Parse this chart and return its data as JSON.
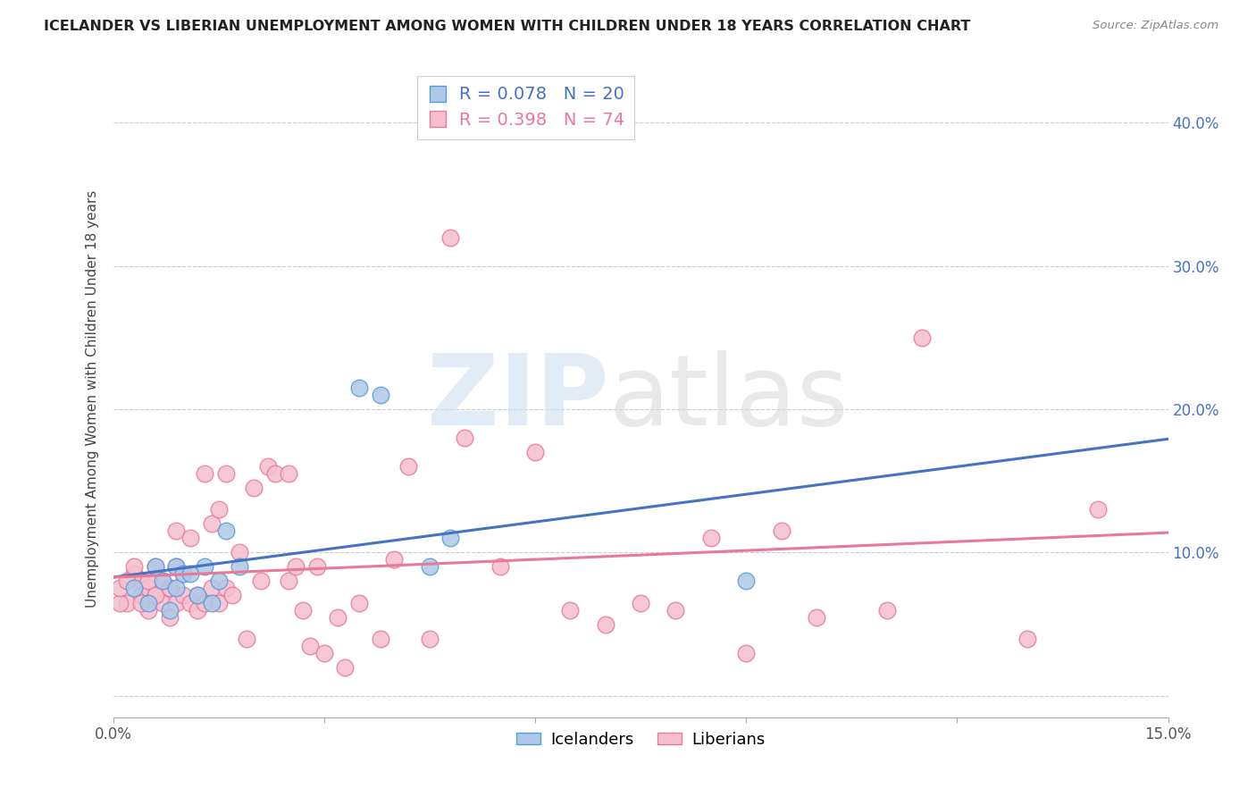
{
  "title": "ICELANDER VS LIBERIAN UNEMPLOYMENT AMONG WOMEN WITH CHILDREN UNDER 18 YEARS CORRELATION CHART",
  "source": "Source: ZipAtlas.com",
  "ylabel": "Unemployment Among Women with Children Under 18 years",
  "xlim": [
    0.0,
    0.15
  ],
  "ylim": [
    -0.015,
    0.43
  ],
  "xticks": [
    0.0,
    0.03,
    0.06,
    0.09,
    0.12,
    0.15
  ],
  "yticks": [
    0.0,
    0.1,
    0.2,
    0.3,
    0.4
  ],
  "icelander_color": "#adc8e8",
  "icelander_edge_color": "#5b9bd5",
  "liberian_color": "#f5bfce",
  "liberian_edge_color": "#e8799a",
  "icelander_line_color": "#4472c4",
  "liberian_line_color": "#e8799a",
  "icelander_x": [
    0.003,
    0.005,
    0.006,
    0.007,
    0.008,
    0.009,
    0.009,
    0.01,
    0.011,
    0.012,
    0.013,
    0.014,
    0.015,
    0.016,
    0.018,
    0.035,
    0.038,
    0.045,
    0.048,
    0.09
  ],
  "icelander_y": [
    0.075,
    0.065,
    0.09,
    0.08,
    0.06,
    0.075,
    0.09,
    0.085,
    0.085,
    0.07,
    0.09,
    0.065,
    0.08,
    0.115,
    0.09,
    0.215,
    0.21,
    0.09,
    0.11,
    0.08
  ],
  "liberian_x": [
    0.002,
    0.003,
    0.004,
    0.004,
    0.005,
    0.005,
    0.006,
    0.006,
    0.007,
    0.007,
    0.008,
    0.008,
    0.009,
    0.009,
    0.009,
    0.01,
    0.01,
    0.011,
    0.011,
    0.012,
    0.012,
    0.013,
    0.013,
    0.014,
    0.014,
    0.015,
    0.015,
    0.016,
    0.016,
    0.017,
    0.018,
    0.019,
    0.02,
    0.021,
    0.022,
    0.023,
    0.025,
    0.025,
    0.026,
    0.027,
    0.028,
    0.029,
    0.03,
    0.032,
    0.033,
    0.035,
    0.038,
    0.04,
    0.042,
    0.045,
    0.048,
    0.05,
    0.055,
    0.06,
    0.065,
    0.07,
    0.075,
    0.08,
    0.085,
    0.09,
    0.095,
    0.1,
    0.11,
    0.115,
    0.13,
    0.14,
    0.001,
    0.001,
    0.002,
    0.003,
    0.004,
    0.005,
    0.006,
    0.008
  ],
  "liberian_y": [
    0.065,
    0.085,
    0.07,
    0.08,
    0.06,
    0.075,
    0.07,
    0.09,
    0.065,
    0.08,
    0.055,
    0.075,
    0.065,
    0.09,
    0.115,
    0.07,
    0.085,
    0.065,
    0.11,
    0.06,
    0.07,
    0.065,
    0.155,
    0.075,
    0.12,
    0.065,
    0.13,
    0.075,
    0.155,
    0.07,
    0.1,
    0.04,
    0.145,
    0.08,
    0.16,
    0.155,
    0.155,
    0.08,
    0.09,
    0.06,
    0.035,
    0.09,
    0.03,
    0.055,
    0.02,
    0.065,
    0.04,
    0.095,
    0.16,
    0.04,
    0.32,
    0.18,
    0.09,
    0.17,
    0.06,
    0.05,
    0.065,
    0.06,
    0.11,
    0.03,
    0.115,
    0.055,
    0.06,
    0.25,
    0.04,
    0.13,
    0.065,
    0.075,
    0.08,
    0.09,
    0.065,
    0.08,
    0.07,
    0.075
  ],
  "background_color": "#ffffff",
  "grid_color": "#cccccc"
}
